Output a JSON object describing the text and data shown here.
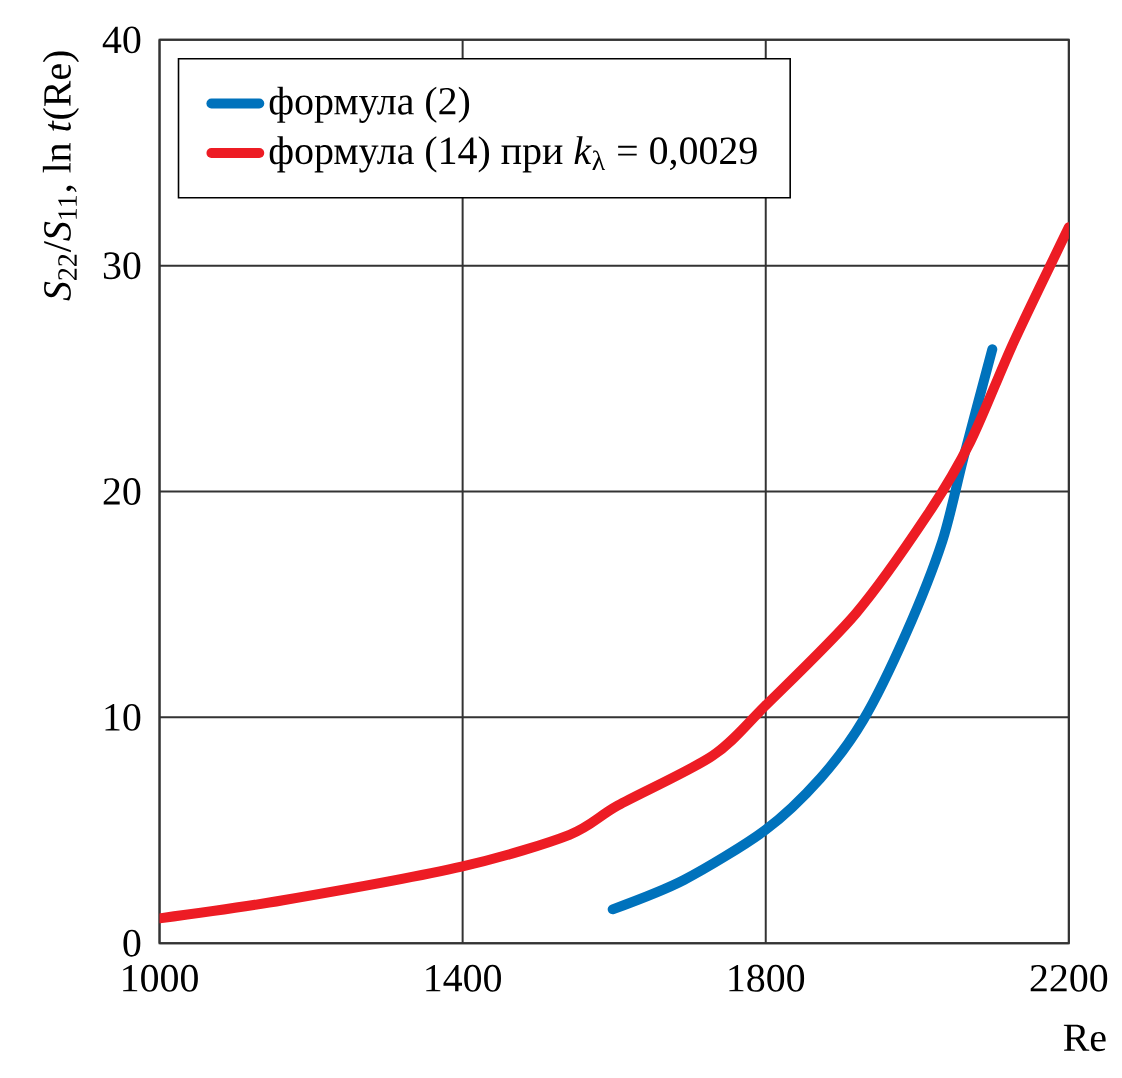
{
  "chart_data": {
    "type": "line",
    "xlabel": "Re",
    "ylabel": "*S*$_{22}$/*S*$_{11}$, ln *t*(Re)",
    "xlim": [
      1000,
      2200
    ],
    "ylim": [
      0,
      40
    ],
    "xticks": [
      1000,
      1400,
      1800,
      2200
    ],
    "yticks": [
      0,
      10,
      20,
      30,
      40
    ],
    "grid": true,
    "legend": "top left",
    "line_style": "solid",
    "marker": "none",
    "series": [
      {
        "name": "формула (2)",
        "color": "#0072bc",
        "x": [
          1598,
          1692,
          1799,
          1872,
          1929,
          1985,
          2033,
          2061,
          2099
        ],
        "values": [
          1.5,
          2.8,
          5.0,
          7.3,
          9.9,
          13.7,
          17.8,
          21.5,
          26.3
        ]
      },
      {
        "name": "формула (14) при *k*$_{λ}$ = 0,0029",
        "color": "#ed1c24",
        "x": [
          1000,
          1163,
          1400,
          1541,
          1605,
          1730,
          1799,
          1919,
          2014,
          2070,
          2127,
          2200
        ],
        "values": [
          1.1,
          1.9,
          3.4,
          4.8,
          6.1,
          8.3,
          10.5,
          14.6,
          19.0,
          22.2,
          26.6,
          31.7
        ]
      }
    ]
  }
}
